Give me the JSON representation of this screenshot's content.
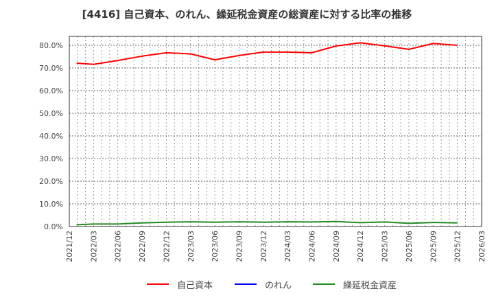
{
  "title": "[4416]  自己資本、のれん、繰延税金資産の総資産に対する比率の推移",
  "legend": [
    {
      "label": "自己資本",
      "color": "#ff0000"
    },
    {
      "label": "のれん",
      "color": "#0000ff"
    },
    {
      "label": "繰延税金資産",
      "color": "#228b22"
    }
  ],
  "chart_data": {
    "type": "line",
    "title": "[4416]  自己資本、のれん、繰延税金資産の総資産に対する比率の推移",
    "xlabel": "",
    "ylabel": "",
    "ylim": [
      0,
      84
    ],
    "y_ticks": [
      "0.0%",
      "10.0%",
      "20.0%",
      "30.0%",
      "40.0%",
      "50.0%",
      "60.0%",
      "70.0%",
      "80.0%"
    ],
    "x_ticks": [
      "2021/12",
      "2022/03",
      "2022/06",
      "2022/09",
      "2022/12",
      "2023/03",
      "2023/06",
      "2023/09",
      "2023/12",
      "2024/03",
      "2024/06",
      "2024/09",
      "2024/12",
      "2025/03",
      "2025/06",
      "2025/09",
      "2025/12",
      "2026/03"
    ],
    "grid": true,
    "legend_position": "bottom",
    "x": [
      "2022/01",
      "2022/03",
      "2022/06",
      "2022/09",
      "2022/12",
      "2023/03",
      "2023/06",
      "2023/09",
      "2023/12",
      "2024/03",
      "2024/06",
      "2024/09",
      "2024/12",
      "2025/03",
      "2025/06",
      "2025/09",
      "2025/12"
    ],
    "x_pos_quarters": [
      0.3,
      1,
      2,
      3,
      4,
      5,
      6,
      7,
      8,
      9,
      10,
      11,
      12,
      13,
      14,
      15,
      16
    ],
    "series": [
      {
        "name": "自己資本",
        "color": "#ff0000",
        "values": [
          72.1,
          71.6,
          73.3,
          75.2,
          76.7,
          76.2,
          73.6,
          75.5,
          77.0,
          77.0,
          76.7,
          79.7,
          81.1,
          79.8,
          78.2,
          80.8,
          80.0
        ]
      },
      {
        "name": "のれん",
        "color": "#0000ff",
        "values": []
      },
      {
        "name": "繰延税金資産",
        "color": "#228b22",
        "values": [
          0.8,
          1.1,
          1.1,
          1.6,
          1.9,
          2.1,
          1.9,
          2.1,
          1.9,
          2.1,
          2.0,
          2.2,
          1.7,
          2.0,
          1.4,
          1.8,
          1.6
        ]
      }
    ]
  }
}
